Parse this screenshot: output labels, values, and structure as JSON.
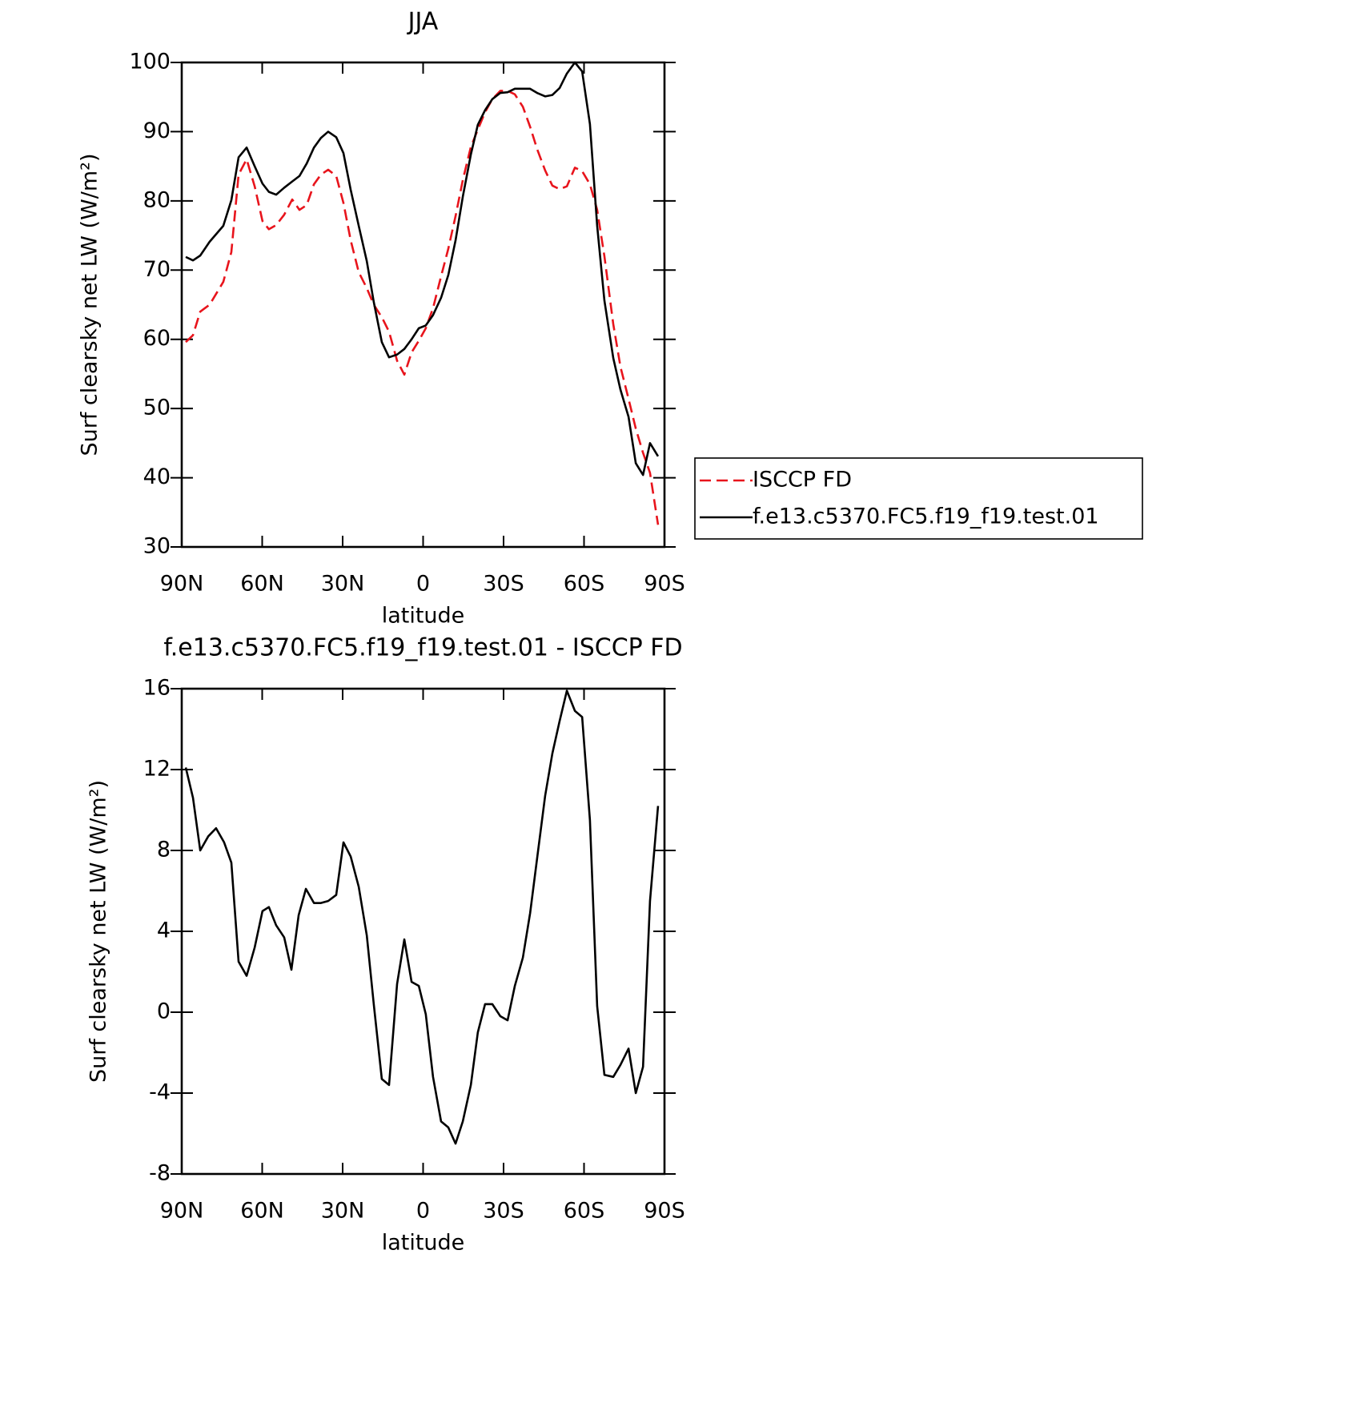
{
  "chart_data": [
    {
      "type": "line",
      "title": "JJA",
      "xlabel": "latitude",
      "ylabel": "Surf clearsky net LW (W/m²)",
      "x": [
        88.5,
        85.8,
        83.1,
        79.6,
        74.5,
        71.5,
        68.8,
        65.8,
        62.8,
        59.9,
        57.5,
        54.8,
        51.8,
        48.8,
        46.1,
        43.4,
        40.7,
        38.1,
        35.4,
        32.4,
        29.7,
        27.0,
        24.0,
        21.0,
        18.4,
        15.4,
        12.7,
        9.7,
        7.0,
        4.3,
        1.6,
        -1.0,
        -3.7,
        -6.7,
        -9.4,
        -12.1,
        -14.8,
        -17.8,
        -20.4,
        -23.1,
        -25.8,
        -28.8,
        -31.5,
        -34.2,
        -37.2,
        -39.9,
        -42.5,
        -45.5,
        -48.2,
        -50.9,
        -53.6,
        -56.6,
        -59.3,
        -62.2,
        -64.9,
        -67.6,
        -70.9,
        -73.6,
        -76.6,
        -79.3,
        -82.0,
        -84.6,
        -87.6
      ],
      "series": [
        {
          "name": "ISCCP FD",
          "color": "#e8141c",
          "linestyle": "dashed",
          "values": [
            59.6,
            60.6,
            64.0,
            65.0,
            68.3,
            72.6,
            83.8,
            86.0,
            82.1,
            77.1,
            75.9,
            76.5,
            78.0,
            80.2,
            78.7,
            79.4,
            82.4,
            83.8,
            84.5,
            83.6,
            79.7,
            74.3,
            69.7,
            67.4,
            65.0,
            63.2,
            61.1,
            56.9,
            54.9,
            58.1,
            59.8,
            61.6,
            64.5,
            69.1,
            73.1,
            77.8,
            83.0,
            87.8,
            90.3,
            92.8,
            94.7,
            95.9,
            95.9,
            95.4,
            93.6,
            90.7,
            87.5,
            84.4,
            82.2,
            81.7,
            82.1,
            84.8,
            84.3,
            82.4,
            78.7,
            72.0,
            62.2,
            56.0,
            51.4,
            47.1,
            43.6,
            40.7,
            33.2
          ]
        },
        {
          "name": "f.e13.c5370.FC5.f19_f19.test.01",
          "color": "#000000",
          "linestyle": "solid",
          "values": [
            71.9,
            71.4,
            72.1,
            74.1,
            76.4,
            80.1,
            86.3,
            87.7,
            85.0,
            82.5,
            81.3,
            80.9,
            81.9,
            82.8,
            83.6,
            85.4,
            87.7,
            89.1,
            90.0,
            89.2,
            86.9,
            81.6,
            76.4,
            71.3,
            65.4,
            59.6,
            57.4,
            57.8,
            58.6,
            60.0,
            61.6,
            62.0,
            63.5,
            66.0,
            69.3,
            74.3,
            80.6,
            86.7,
            91.0,
            93.1,
            94.7,
            95.6,
            95.7,
            96.2,
            96.2,
            96.2,
            95.6,
            95.1,
            95.3,
            96.3,
            98.4,
            100,
            98.7,
            91.1,
            76.4,
            65.6,
            57.3,
            52.7,
            48.8,
            42.1,
            40.4,
            45.0,
            43.1
          ]
        }
      ],
      "xlim": [
        90,
        -90
      ],
      "xticks": [
        {
          "value": 90,
          "label": "90N"
        },
        {
          "value": 60,
          "label": "60N"
        },
        {
          "value": 30,
          "label": "30N"
        },
        0,
        {
          "value": -30,
          "label": "30S"
        },
        {
          "value": -60,
          "label": "60S"
        },
        {
          "value": -90,
          "label": "90S"
        }
      ],
      "ylim": [
        30,
        100
      ],
      "yticks": [
        30,
        40,
        50,
        60,
        70,
        80,
        90,
        100
      ],
      "legend": "right"
    },
    {
      "type": "line",
      "title": "f.e13.c5370.FC5.f19_f19.test.01 - ISCCP FD",
      "xlabel": "latitude",
      "ylabel": "Surf clearsky net LW (W/m²)",
      "x": [
        88.5,
        85.8,
        83.1,
        80.1,
        77.2,
        74.2,
        71.5,
        68.8,
        65.8,
        62.8,
        59.9,
        57.5,
        54.8,
        51.8,
        49.1,
        46.4,
        43.7,
        40.7,
        38.1,
        35.4,
        32.4,
        29.7,
        27.0,
        24.0,
        21.0,
        18.4,
        15.4,
        12.7,
        9.7,
        7.0,
        4.3,
        1.6,
        -1.0,
        -3.7,
        -6.7,
        -9.4,
        -12.1,
        -14.8,
        -17.8,
        -20.4,
        -23.1,
        -25.8,
        -28.8,
        -31.5,
        -34.2,
        -37.2,
        -39.9,
        -42.5,
        -45.5,
        -48.2,
        -50.9,
        -53.6,
        -56.6,
        -59.3,
        -62.2,
        -64.9,
        -67.6,
        -70.9,
        -73.6,
        -76.6,
        -79.3,
        -82.0,
        -84.6,
        -87.6
      ],
      "color": "#000000",
      "values": [
        12.1,
        10.6,
        8.0,
        8.7,
        9.1,
        8.4,
        7.4,
        2.5,
        1.8,
        3.2,
        5.0,
        5.2,
        4.3,
        3.7,
        2.1,
        4.8,
        6.1,
        5.4,
        5.4,
        5.5,
        5.8,
        8.4,
        7.7,
        6.2,
        3.8,
        0.4,
        -3.3,
        -3.6,
        1.4,
        3.6,
        1.5,
        1.3,
        -0.1,
        -3.2,
        -5.4,
        -5.7,
        -6.5,
        -5.4,
        -3.6,
        -1.0,
        0.4,
        0.4,
        -0.2,
        -0.4,
        1.3,
        2.7,
        4.9,
        7.6,
        10.7,
        12.8,
        14.4,
        15.9,
        14.9,
        14.6,
        9.5,
        0.3,
        -3.1,
        -3.2,
        -2.6,
        -1.8,
        -4.0,
        -2.7,
        5.5,
        10.2
      ],
      "xlim": [
        90,
        -90
      ],
      "xticks": [
        {
          "value": 90,
          "label": "90N"
        },
        {
          "value": 60,
          "label": "60N"
        },
        {
          "value": 30,
          "label": "30N"
        },
        0,
        {
          "value": -30,
          "label": "30S"
        },
        {
          "value": -60,
          "label": "60S"
        },
        {
          "value": -90,
          "label": "90S"
        }
      ],
      "ylim": [
        -8,
        16
      ],
      "yticks": [
        -8,
        -4,
        0,
        4,
        8,
        12,
        16
      ]
    }
  ]
}
